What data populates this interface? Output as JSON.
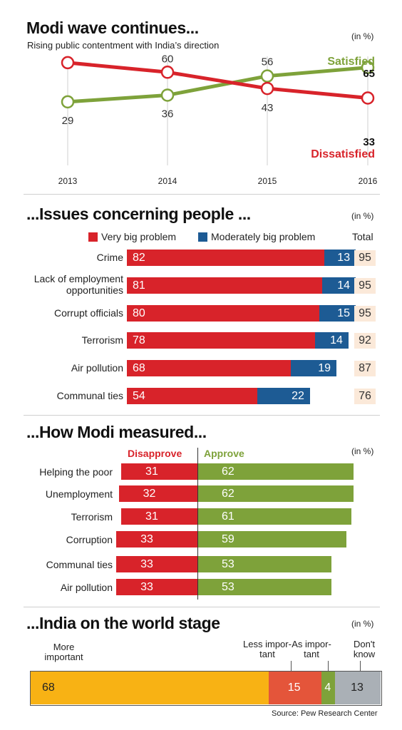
{
  "colors": {
    "red": "#d8232a",
    "green": "#7ea23a",
    "blue": "#1d5b94",
    "gold": "#f8b214",
    "orange": "#e4553a",
    "grey": "#aab0b6"
  },
  "source": "Source: Pew Research Center",
  "chart_data": [
    {
      "type": "line",
      "title": "Modi wave continues...",
      "subtitle": "Rising public contentment with India’s direction",
      "unit": "(in %)",
      "categories": [
        "2013",
        "2014",
        "2015",
        "2016"
      ],
      "ylim": [
        25,
        75
      ],
      "series": [
        {
          "name": "Satisfied",
          "values": [
            29,
            36,
            56,
            65
          ],
          "color": "#7ea23a"
        },
        {
          "name": "Dissatisfied",
          "values": [
            70,
            60,
            43,
            33
          ],
          "color": "#d8232a"
        }
      ]
    },
    {
      "type": "bar",
      "title": "...Issues concerning people ...",
      "unit": "(in %)",
      "total_label": "Total",
      "categories": [
        "Crime",
        "Lack of employment opportunities",
        "Corrupt officials",
        "Terrorism",
        "Air pollution",
        "Communal ties"
      ],
      "series": [
        {
          "name": "Very big problem",
          "values": [
            82,
            81,
            80,
            78,
            68,
            54
          ],
          "color": "#d8232a"
        },
        {
          "name": "Moderately big problem",
          "values": [
            13,
            14,
            15,
            14,
            19,
            22
          ],
          "color": "#1d5b94"
        }
      ],
      "totals": [
        95,
        95,
        95,
        92,
        87,
        76
      ]
    },
    {
      "type": "bar",
      "title": "...How Modi measured...",
      "unit": "(in %)",
      "categories": [
        "Helping the poor",
        "Unemployment",
        "Terrorism",
        "Corruption",
        "Communal ties",
        "Air pollution"
      ],
      "series": [
        {
          "name": "Disapprove",
          "values": [
            31,
            32,
            31,
            33,
            33,
            33
          ],
          "color": "#d8232a"
        },
        {
          "name": "Approve",
          "values": [
            62,
            62,
            61,
            59,
            53,
            53
          ],
          "color": "#7ea23a"
        }
      ]
    },
    {
      "type": "bar",
      "title": "...India on the world stage",
      "unit": "(in %)",
      "segments": [
        {
          "label": "More important",
          "value": 68,
          "color": "#f8b214"
        },
        {
          "label": "Less important",
          "value": 15,
          "color": "#e4553a"
        },
        {
          "label": "As important",
          "value": 4,
          "color": "#7ea23a"
        },
        {
          "label": "Don't know",
          "value": 13,
          "color": "#aab0b6"
        }
      ]
    }
  ]
}
